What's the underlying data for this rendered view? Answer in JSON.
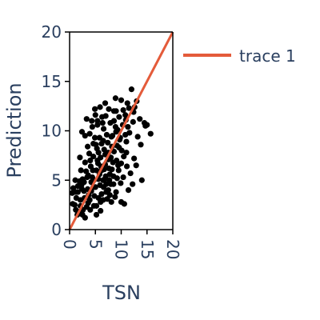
{
  "chart_data": {
    "type": "scatter",
    "xlabel": "TSN",
    "ylabel": "Prediction",
    "xlim": [
      0,
      20
    ],
    "ylim": [
      0,
      20
    ],
    "x_ticks": [
      "0",
      "5",
      "10",
      "15",
      "20"
    ],
    "y_ticks": [
      "0",
      "5",
      "10",
      "15",
      "20"
    ],
    "grid": false,
    "legend_position": "top-right",
    "colors": {
      "points": "#000000",
      "line": "#e45b3a",
      "text": "#2a3f5f"
    },
    "series": [
      {
        "mode": "markers",
        "points": [
          [
            1.2,
            3.8
          ],
          [
            2.3,
            4.5
          ],
          [
            9.0,
            12.0
          ],
          [
            10.4,
            12.1
          ],
          [
            11.5,
            12.3
          ],
          [
            12.0,
            14.2
          ],
          [
            13.2,
            9.4
          ],
          [
            9.0,
            3.8
          ],
          [
            7.8,
            5.6
          ],
          [
            12.2,
            4.6
          ],
          [
            14.0,
            5.0
          ],
          [
            10.0,
            2.8
          ],
          [
            15.0,
            10.6
          ],
          [
            15.7,
            9.7
          ],
          [
            7.5,
            7.8
          ],
          [
            6.2,
            8.7
          ],
          [
            5.5,
            6.7
          ],
          [
            4.0,
            7.0
          ],
          [
            3.0,
            9.5
          ],
          [
            3.3,
            11.2
          ],
          [
            4.4,
            10.4
          ],
          [
            5.4,
            10.6
          ],
          [
            5.8,
            9.3
          ],
          [
            6.6,
            10.2
          ],
          [
            8.2,
            8.4
          ],
          [
            9.8,
            9.3
          ],
          [
            11.0,
            7.8
          ],
          [
            10.0,
            6.7
          ],
          [
            8.5,
            4.6
          ],
          [
            7.5,
            4.0
          ],
          [
            6.5,
            3.0
          ],
          [
            5.2,
            2.4
          ],
          [
            3.6,
            2.7
          ],
          [
            4.2,
            3.9
          ],
          [
            2.8,
            4.8
          ],
          [
            1.6,
            4.4
          ],
          [
            4.2,
            4.8
          ],
          [
            4.7,
            5.0
          ],
          [
            5.2,
            6.0
          ],
          [
            5.8,
            5.6
          ],
          [
            6.2,
            6.0
          ],
          [
            7.0,
            5.4
          ],
          [
            6.6,
            4.3
          ],
          [
            7.5,
            7.1
          ],
          [
            8.0,
            7.3
          ],
          [
            6.7,
            6.1
          ],
          [
            8.3,
            9.5
          ],
          [
            9.0,
            9.9
          ],
          [
            6.5,
            9.0
          ],
          [
            5.1,
            8.6
          ],
          [
            4.6,
            8.7
          ],
          [
            4.9,
            9.3
          ],
          [
            4.1,
            6.4
          ],
          [
            5.3,
            8.2
          ],
          [
            6.9,
            6.6
          ],
          [
            8.2,
            6.1
          ],
          [
            9.5,
            6.0
          ],
          [
            11.4,
            4.0
          ],
          [
            10.6,
            2.6
          ],
          [
            3.0,
            1.2
          ],
          [
            2.1,
            2.4
          ],
          [
            1.0,
            2.5
          ],
          [
            1.6,
            3.8
          ],
          [
            2.5,
            5.1
          ],
          [
            2.9,
            3.2
          ],
          [
            3.7,
            3.5
          ],
          [
            4.6,
            4.3
          ],
          [
            4.7,
            2.4
          ],
          [
            5.6,
            3.2
          ],
          [
            5.9,
            4.5
          ],
          [
            6.2,
            3.6
          ],
          [
            6.5,
            5.0
          ],
          [
            7.1,
            4.6
          ],
          [
            8.0,
            4.6
          ],
          [
            8.5,
            5.4
          ],
          [
            9.4,
            6.5
          ],
          [
            9.6,
            8.3
          ],
          [
            10.3,
            10.6
          ],
          [
            10.8,
            11.6
          ],
          [
            11.6,
            9.8
          ],
          [
            12.3,
            10.9
          ],
          [
            13.8,
            8.6
          ],
          [
            14.7,
            10.5
          ],
          [
            12.5,
            7.2
          ],
          [
            11.1,
            6.4
          ],
          [
            10.4,
            5.3
          ],
          [
            7.8,
            3.5
          ],
          [
            5.2,
            1.5
          ],
          [
            6.0,
            2.8
          ],
          [
            3.4,
            5.3
          ],
          [
            2.2,
            6.0
          ],
          [
            3.6,
            5.5
          ],
          [
            3.0,
            6.8
          ],
          [
            4.4,
            5.3
          ],
          [
            1.5,
            1.5
          ],
          [
            0.5,
            3.7
          ],
          [
            0.6,
            2.6
          ],
          [
            1.3,
            3.2
          ],
          [
            2.6,
            2.0
          ],
          [
            3.9,
            3.0
          ],
          [
            5.0,
            4.3
          ],
          [
            6.0,
            7.3
          ],
          [
            6.9,
            7.6
          ],
          [
            7.4,
            8.8
          ],
          [
            7.9,
            10.8
          ],
          [
            7.0,
            11.5
          ],
          [
            8.6,
            11.0
          ],
          [
            9.6,
            11.4
          ],
          [
            10.9,
            11.1
          ],
          [
            9.3,
            10.1
          ],
          [
            9.2,
            8.5
          ],
          [
            8.6,
            7.9
          ],
          [
            7.6,
            6.2
          ],
          [
            7.1,
            3.8
          ],
          [
            8.8,
            3.3
          ],
          [
            9.9,
            4.7
          ],
          [
            10.5,
            7.4
          ],
          [
            11.0,
            8.9
          ],
          [
            8.1,
            9.4
          ],
          [
            6.3,
            11.4
          ],
          [
            5.9,
            12.4
          ],
          [
            4.9,
            12.2
          ],
          [
            4.3,
            11.0
          ],
          [
            3.9,
            9.7
          ],
          [
            6.7,
            8.1
          ],
          [
            2.4,
            9.9
          ],
          [
            2.0,
            7.3
          ],
          [
            1.1,
            5.0
          ],
          [
            2.1,
            3.0
          ],
          [
            3.5,
            4.1
          ],
          [
            4.5,
            6.0
          ],
          [
            5.6,
            7.8
          ],
          [
            7.2,
            9.6
          ],
          [
            8.6,
            12.0
          ],
          [
            11.2,
            12.8
          ],
          [
            12.4,
            11.9
          ],
          [
            13.0,
            13.0
          ],
          [
            14.5,
            10.8
          ],
          [
            12.9,
            6.5
          ],
          [
            11.8,
            5.7
          ],
          [
            9.2,
            5.2
          ],
          [
            8.1,
            2.8
          ],
          [
            7.3,
            3.1
          ],
          [
            6.0,
            1.9
          ],
          [
            4.0,
            2.0
          ],
          [
            2.8,
            3.9
          ],
          [
            1.9,
            4.9
          ],
          [
            1.2,
            2.0
          ],
          [
            0.7,
            4.2
          ],
          [
            2.4,
            4.1
          ],
          [
            3.2,
            5.9
          ],
          [
            3.8,
            7.7
          ],
          [
            4.6,
            7.4
          ],
          [
            5.4,
            7.0
          ],
          [
            6.1,
            6.4
          ],
          [
            6.8,
            5.1
          ],
          [
            7.7,
            5.0
          ],
          [
            8.4,
            6.8
          ],
          [
            9.1,
            7.0
          ],
          [
            10.1,
            8.0
          ],
          [
            10.8,
            9.6
          ],
          [
            6.4,
            10.8
          ],
          [
            5.0,
            11.6
          ],
          [
            3.5,
            8.4
          ],
          [
            5.6,
            5.1
          ],
          [
            4.8,
            3.4
          ],
          [
            3.3,
            2.3
          ],
          [
            2.5,
            1.5
          ],
          [
            1.8,
            1.8
          ],
          [
            7.6,
            12.2
          ],
          [
            8.9,
            13.3
          ],
          [
            10.0,
            13.1
          ],
          [
            12.6,
            12.4
          ],
          [
            13.6,
            11.2
          ],
          [
            11.3,
            10.4
          ],
          [
            9.7,
            9.1
          ],
          [
            8.9,
            10.4
          ],
          [
            6.9,
            12.8
          ],
          [
            5.4,
            11.0
          ]
        ]
      },
      {
        "name": "trace 1",
        "mode": "lines",
        "x": [
          0,
          20
        ],
        "y": [
          0,
          20
        ]
      }
    ]
  }
}
